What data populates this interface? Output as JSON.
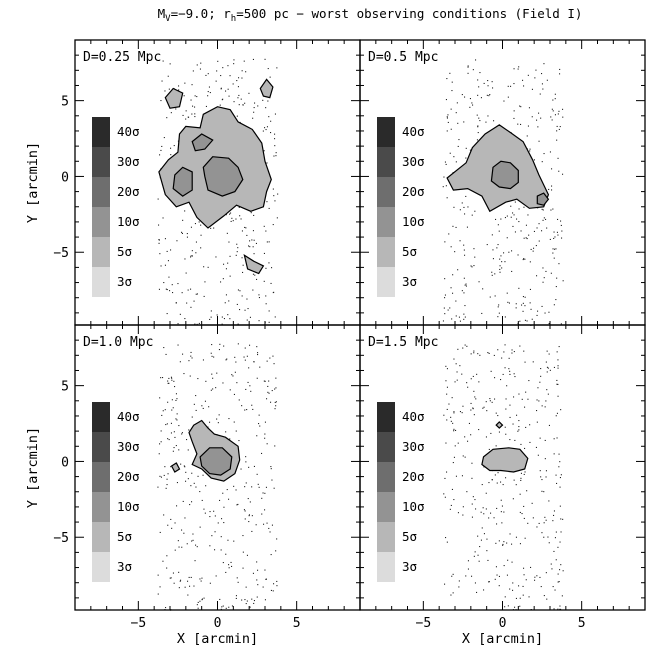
{
  "figure": {
    "title_parts": [
      {
        "t": "M"
      },
      {
        "t": "V",
        "sub": true
      },
      {
        "t": "=−9.0; r"
      },
      {
        "t": "h",
        "sub": true
      },
      {
        "t": "=500 pc − worst observing conditions (Field I)"
      }
    ],
    "xlabel": "X [arcmin]",
    "ylabel": "Y [arcmin]"
  },
  "chart_data": {
    "type": "heatmap",
    "description_units": "arcmin",
    "xlim": [
      -9,
      9
    ],
    "ylim": [
      -9.8,
      9
    ],
    "xticks": [
      -5,
      0,
      5
    ],
    "yticks": [
      -5,
      0,
      5
    ],
    "xtick_labels": [
      "−5",
      "0",
      "5"
    ],
    "ytick_labels": [
      "−5",
      "0",
      "5"
    ],
    "field_extent": {
      "x": [
        -3.8,
        3.8
      ],
      "y": [
        -9.8,
        7.8
      ]
    },
    "levels": [
      {
        "label": "40σ",
        "color": "#2a2a2a"
      },
      {
        "label": "30σ",
        "color": "#4a4a4a"
      },
      {
        "label": "20σ",
        "color": "#6e6e6e"
      },
      {
        "label": "10σ",
        "color": "#939393"
      },
      {
        "label": "5σ",
        "color": "#b7b7b7"
      },
      {
        "label": "3σ",
        "color": "#dcdcdc"
      }
    ],
    "panels": [
      {
        "label": "D=0.25 Mpc",
        "contours": [
          {
            "level": "5σ",
            "points": [
              [
                -3.7,
                0.3
              ],
              [
                -3.1,
                1.1
              ],
              [
                -2.5,
                1.6
              ],
              [
                -2.4,
                2.8
              ],
              [
                -2.0,
                3.3
              ],
              [
                -1.1,
                3.2
              ],
              [
                -0.9,
                4.1
              ],
              [
                0.0,
                4.6
              ],
              [
                0.8,
                4.4
              ],
              [
                1.3,
                3.6
              ],
              [
                2.2,
                3.1
              ],
              [
                2.8,
                2.2
              ],
              [
                3.0,
                1.0
              ],
              [
                3.4,
                -0.2
              ],
              [
                3.1,
                -1.0
              ],
              [
                2.9,
                -2.0
              ],
              [
                2.1,
                -2.3
              ],
              [
                1.2,
                -1.9
              ],
              [
                0.4,
                -2.6
              ],
              [
                -0.6,
                -3.4
              ],
              [
                -1.3,
                -2.7
              ],
              [
                -1.8,
                -1.7
              ],
              [
                -2.6,
                -2.0
              ],
              [
                -3.3,
                -1.2
              ]
            ]
          },
          {
            "level": "5σ",
            "points": [
              [
                -3.3,
                5.2
              ],
              [
                -2.8,
                5.8
              ],
              [
                -2.2,
                5.5
              ],
              [
                -2.4,
                4.6
              ],
              [
                -3.0,
                4.5
              ]
            ]
          },
          {
            "level": "5σ",
            "points": [
              [
                2.7,
                5.8
              ],
              [
                3.1,
                6.4
              ],
              [
                3.5,
                5.9
              ],
              [
                3.3,
                5.2
              ],
              [
                2.9,
                5.3
              ]
            ]
          },
          {
            "level": "5σ",
            "points": [
              [
                1.7,
                -5.2
              ],
              [
                2.3,
                -5.6
              ],
              [
                2.9,
                -5.9
              ],
              [
                2.6,
                -6.4
              ],
              [
                1.9,
                -6.1
              ]
            ]
          },
          {
            "level": "10σ",
            "points": [
              [
                -2.7,
                0.1
              ],
              [
                -2.2,
                0.6
              ],
              [
                -1.6,
                0.3
              ],
              [
                -1.6,
                -0.9
              ],
              [
                -2.2,
                -1.3
              ],
              [
                -2.8,
                -0.8
              ]
            ]
          },
          {
            "level": "10σ",
            "points": [
              [
                -0.9,
                0.6
              ],
              [
                -0.3,
                1.3
              ],
              [
                0.7,
                1.2
              ],
              [
                1.3,
                0.6
              ],
              [
                1.6,
                -0.2
              ],
              [
                1.1,
                -1.0
              ],
              [
                0.3,
                -1.3
              ],
              [
                -0.6,
                -0.9
              ],
              [
                -0.8,
                0.0
              ]
            ]
          },
          {
            "level": "10σ",
            "points": [
              [
                -1.6,
                2.3
              ],
              [
                -1.0,
                2.8
              ],
              [
                -0.3,
                2.4
              ],
              [
                -0.8,
                1.8
              ],
              [
                -1.4,
                1.7
              ]
            ]
          }
        ]
      },
      {
        "label": "D=0.5 Mpc",
        "contours": [
          {
            "level": "5σ",
            "points": [
              [
                -3.5,
                -0.1
              ],
              [
                -2.3,
                0.9
              ],
              [
                -1.9,
                1.9
              ],
              [
                -1.1,
                2.8
              ],
              [
                -0.2,
                3.4
              ],
              [
                0.5,
                2.9
              ],
              [
                1.3,
                2.3
              ],
              [
                1.9,
                1.1
              ],
              [
                2.3,
                0.1
              ],
              [
                2.9,
                -1.2
              ],
              [
                2.6,
                -2.0
              ],
              [
                1.7,
                -2.1
              ],
              [
                0.9,
                -1.5
              ],
              [
                0.2,
                -1.7
              ],
              [
                -0.8,
                -2.3
              ],
              [
                -1.3,
                -1.3
              ],
              [
                -2.2,
                -0.8
              ],
              [
                -3.1,
                -0.9
              ]
            ]
          },
          {
            "level": "10σ",
            "points": [
              [
                -0.6,
                0.6
              ],
              [
                -0.1,
                1.0
              ],
              [
                0.5,
                0.9
              ],
              [
                1.0,
                0.4
              ],
              [
                1.0,
                -0.4
              ],
              [
                0.5,
                -0.8
              ],
              [
                -0.2,
                -0.7
              ],
              [
                -0.7,
                -0.3
              ]
            ]
          },
          {
            "level": "10σ",
            "points": [
              [
                2.2,
                -1.3
              ],
              [
                2.6,
                -1.1
              ],
              [
                2.9,
                -1.5
              ],
              [
                2.6,
                -1.9
              ],
              [
                2.2,
                -1.8
              ]
            ]
          }
        ]
      },
      {
        "label": "D=1.0 Mpc",
        "contours": [
          {
            "level": "5σ",
            "points": [
              [
                -1.5,
                2.4
              ],
              [
                -1.0,
                2.7
              ],
              [
                -0.6,
                2.2
              ],
              [
                -0.2,
                1.8
              ],
              [
                0.5,
                1.6
              ],
              [
                1.3,
                1.0
              ],
              [
                1.4,
                0.1
              ],
              [
                1.1,
                -0.8
              ],
              [
                0.4,
                -1.3
              ],
              [
                -0.4,
                -1.1
              ],
              [
                -1.0,
                -0.5
              ],
              [
                -1.6,
                -0.2
              ],
              [
                -1.3,
                0.5
              ],
              [
                -1.6,
                1.3
              ],
              [
                -1.8,
                1.9
              ]
            ]
          },
          {
            "level": "10σ",
            "points": [
              [
                -1.1,
                0.3
              ],
              [
                -0.5,
                0.9
              ],
              [
                0.3,
                0.9
              ],
              [
                0.9,
                0.3
              ],
              [
                0.8,
                -0.5
              ],
              [
                0.2,
                -0.9
              ],
              [
                -0.5,
                -0.8
              ],
              [
                -1.0,
                -0.3
              ]
            ]
          },
          {
            "level": "5σ",
            "points": [
              [
                -2.9,
                -0.3
              ],
              [
                -2.6,
                -0.1
              ],
              [
                -2.4,
                -0.5
              ],
              [
                -2.7,
                -0.7
              ]
            ]
          }
        ]
      },
      {
        "label": "D=1.5 Mpc",
        "contours": [
          {
            "level": "5σ",
            "points": [
              [
                -1.2,
                0.3
              ],
              [
                -0.6,
                0.8
              ],
              [
                0.4,
                0.9
              ],
              [
                1.1,
                0.8
              ],
              [
                1.6,
                0.2
              ],
              [
                1.4,
                -0.5
              ],
              [
                0.7,
                -0.7
              ],
              [
                -0.1,
                -0.6
              ],
              [
                -0.8,
                -0.6
              ],
              [
                -1.3,
                -0.2
              ]
            ]
          },
          {
            "level": "5σ",
            "points": [
              [
                -0.4,
                2.4
              ],
              [
                -0.2,
                2.6
              ],
              [
                0.0,
                2.4
              ],
              [
                -0.2,
                2.2
              ]
            ]
          }
        ]
      }
    ]
  }
}
